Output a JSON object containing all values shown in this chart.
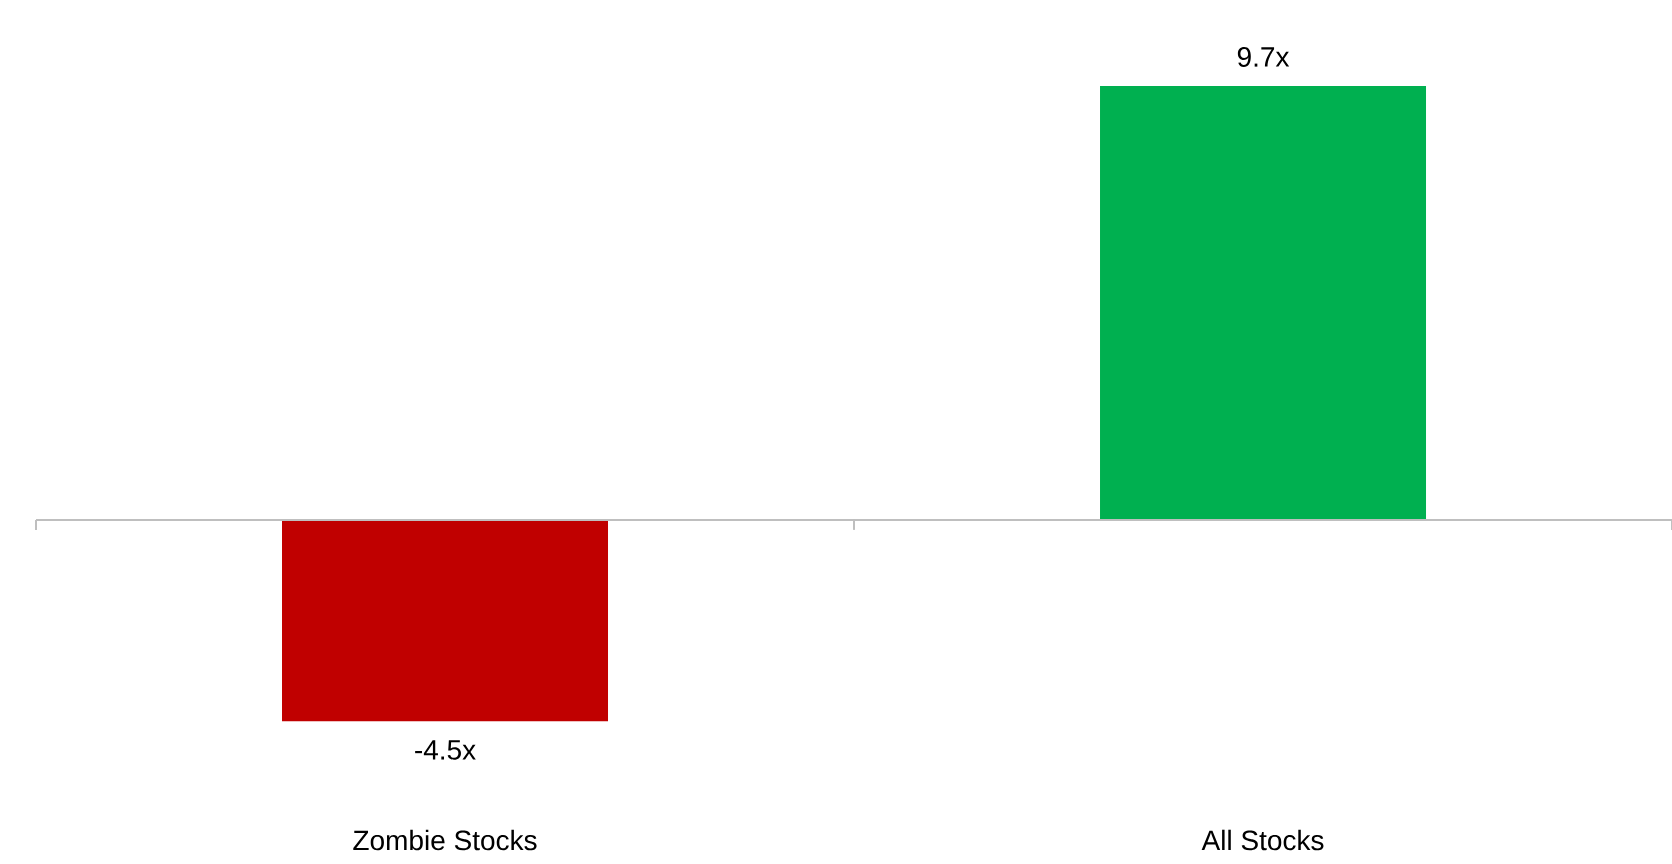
{
  "chart_data": {
    "type": "bar",
    "categories": [
      "Zombie Stocks",
      "All Stocks"
    ],
    "values": [
      -4.5,
      9.7
    ],
    "colors": [
      "#c00000",
      "#00b050"
    ],
    "value_labels": [
      "-4.5x",
      "9.7x"
    ]
  }
}
